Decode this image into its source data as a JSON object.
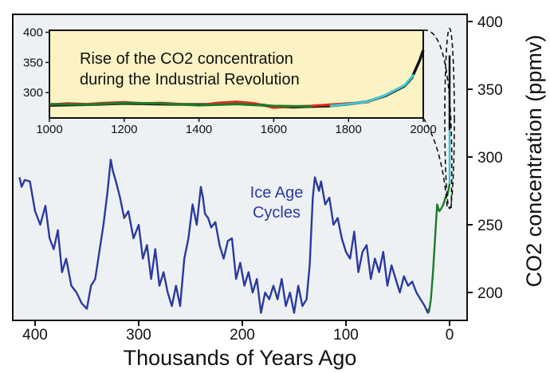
{
  "chart_data": [
    {
      "type": "line",
      "xlabel": "Thousands of Years Ago",
      "ylabel": "CO2 concentration (ppmv)",
      "xlim": [
        420,
        -10
      ],
      "ylim": [
        180,
        400
      ],
      "x_ticks": [
        400,
        300,
        200,
        100,
        0
      ],
      "y_ticks": [
        200,
        250,
        300,
        350,
        400
      ],
      "y_axis_side": "right",
      "annotations": [
        {
          "text": "Ice Age Cycles"
        }
      ],
      "colors": {
        "background": "#eef1f3",
        "ice_core": "#2a3aa0",
        "holocene": "#1d7a2a",
        "industrial": "#3cc8d8",
        "recent": "#000000"
      },
      "series": [
        {
          "color": "#2a3aa0",
          "x": [
            415,
            413,
            410,
            405,
            400,
            395,
            390,
            386,
            382,
            378,
            374,
            370,
            365,
            360,
            355,
            350,
            346,
            342,
            338,
            334,
            330,
            327,
            325,
            322,
            318,
            314,
            310,
            305,
            300,
            296,
            292,
            288,
            284,
            280,
            276,
            272,
            268,
            264,
            260,
            256,
            252,
            248,
            244,
            240,
            238,
            236,
            233,
            230,
            226,
            222,
            218,
            214,
            210,
            206,
            202,
            198,
            194,
            190,
            186,
            182,
            178,
            174,
            170,
            166,
            162,
            158,
            154,
            150,
            146,
            142,
            138,
            135,
            132,
            130,
            128,
            126,
            124,
            120,
            116,
            112,
            108,
            104,
            100,
            96,
            92,
            88,
            84,
            80,
            76,
            72,
            68,
            64,
            60,
            56,
            52,
            48,
            44,
            40,
            36,
            32,
            28,
            24,
            21,
            20
          ],
          "y": [
            285,
            278,
            283,
            282,
            260,
            250,
            264,
            240,
            232,
            246,
            215,
            225,
            205,
            200,
            192,
            188,
            205,
            210,
            230,
            250,
            275,
            298,
            290,
            282,
            270,
            255,
            260,
            240,
            250,
            225,
            235,
            210,
            232,
            205,
            215,
            200,
            190,
            205,
            190,
            225,
            240,
            265,
            250,
            278,
            270,
            258,
            255,
            248,
            252,
            235,
            225,
            238,
            240,
            210,
            222,
            205,
            215,
            200,
            210,
            185,
            200,
            195,
            205,
            195,
            210,
            190,
            200,
            185,
            205,
            190,
            195,
            220,
            270,
            285,
            280,
            275,
            282,
            265,
            270,
            250,
            255,
            240,
            230,
            225,
            245,
            215,
            230,
            235,
            210,
            225,
            215,
            230,
            205,
            220,
            210,
            200,
            212,
            205,
            208,
            200,
            195,
            190,
            185,
            188
          ]
        },
        {
          "color": "#1d7a2a",
          "x": [
            20,
            18,
            16,
            14,
            12,
            10,
            8,
            6,
            4,
            2,
            0
          ],
          "y": [
            185,
            195,
            215,
            240,
            265,
            260,
            262,
            265,
            270,
            272,
            280
          ]
        },
        {
          "color": "#3cc8d8",
          "x": [
            0,
            0,
            0
          ],
          "y": [
            280,
            300,
            320
          ]
        },
        {
          "color": "#000000",
          "x": [
            0,
            0,
            0
          ],
          "y": [
            320,
            350,
            375
          ]
        }
      ]
    },
    {
      "type": "line",
      "title": "Rise of the CO2 concentration during the Industrial Revolution",
      "title_lines": [
        "Rise of the CO2 concentration",
        "during the Industrial Revolution"
      ],
      "xlim": [
        1000,
        2005
      ],
      "ylim": [
        255,
        400
      ],
      "x_ticks": [
        1000,
        1200,
        1400,
        1600,
        1800,
        2000
      ],
      "y_ticks": [
        300,
        350,
        400
      ],
      "colors": {
        "background": "#fcf3c4"
      },
      "series": [
        {
          "color": "#111111",
          "x": [
            1000,
            1100,
            1200,
            1300,
            1400,
            1500,
            1550,
            1600,
            1650,
            1700,
            1750,
            1800,
            1850,
            1900,
            1950,
            1970,
            1990,
            2000
          ],
          "y": [
            279,
            280,
            282,
            281,
            280,
            282,
            281,
            277,
            276,
            277,
            278,
            281,
            285,
            295,
            311,
            325,
            353,
            370
          ]
        },
        {
          "color": "#e02a1a",
          "x": [
            1000,
            1050,
            1100,
            1150,
            1200,
            1250,
            1300,
            1350,
            1400,
            1450,
            1500,
            1550,
            1600,
            1650,
            1700,
            1750,
            1800,
            1850,
            1900,
            1950
          ],
          "y": [
            280,
            282,
            281,
            283,
            284,
            282,
            283,
            281,
            279,
            283,
            285,
            282,
            275,
            277,
            278,
            280,
            282,
            284,
            296,
            312
          ]
        },
        {
          "color": "#1d7a2a",
          "x": [
            1000,
            1100,
            1200,
            1300,
            1400,
            1500,
            1600,
            1700
          ],
          "y": [
            281,
            280,
            283,
            282,
            279,
            281,
            278,
            277
          ]
        },
        {
          "color": "#3cc8d8",
          "x": [
            1750,
            1800,
            1850,
            1900,
            1950,
            1975
          ],
          "y": [
            278,
            281,
            285,
            296,
            312,
            330
          ]
        }
      ]
    }
  ]
}
